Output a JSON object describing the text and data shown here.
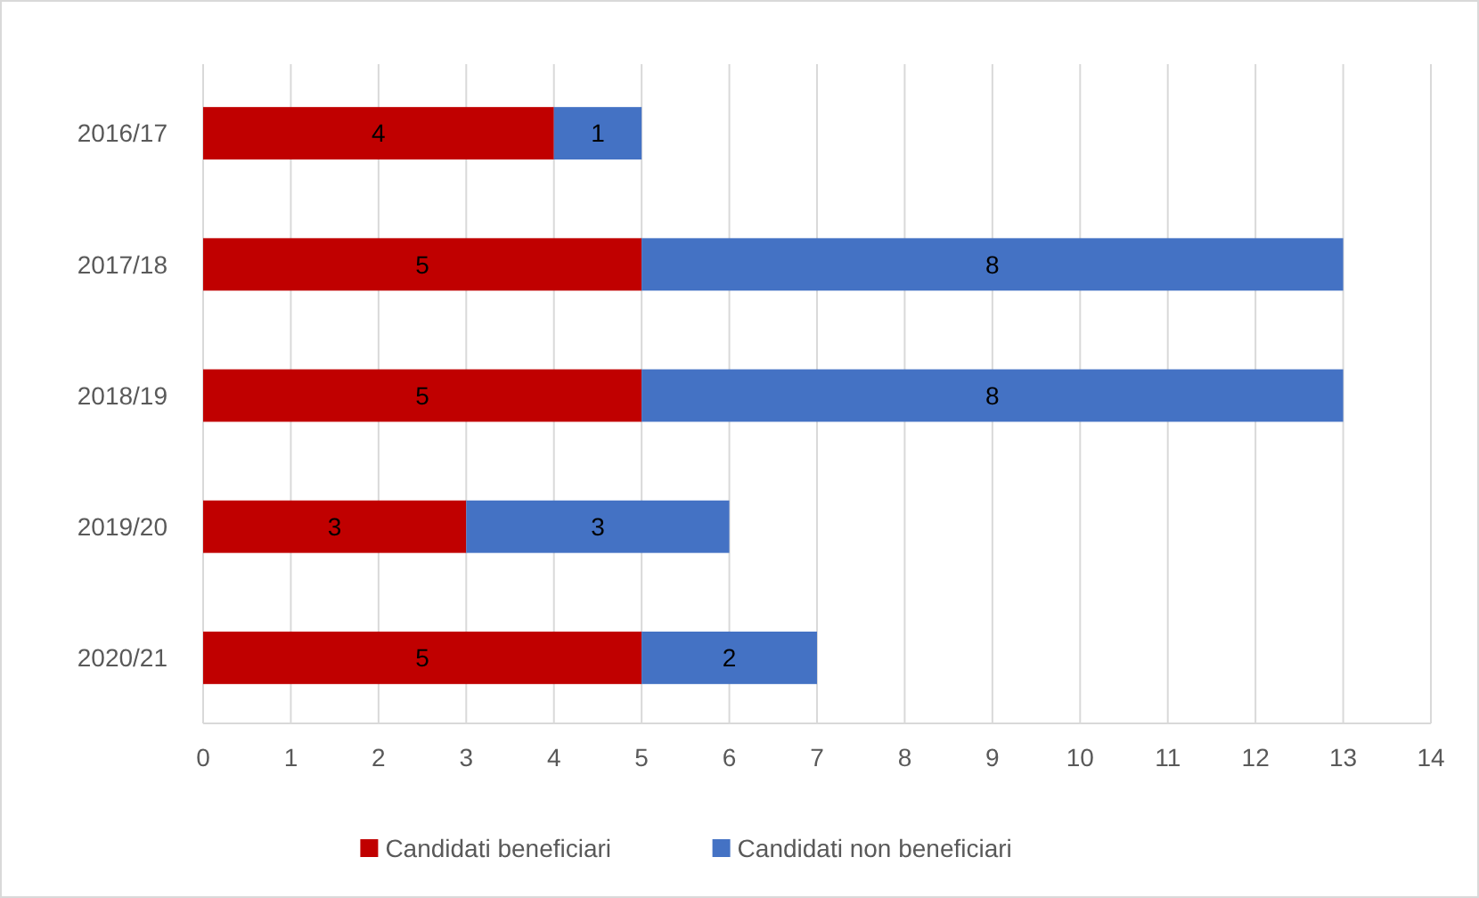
{
  "chart_data": {
    "type": "bar",
    "orientation": "horizontal",
    "stacked": true,
    "categories": [
      "2016/17",
      "2017/18",
      "2018/19",
      "2019/20",
      "2020/21"
    ],
    "series": [
      {
        "name": "Candidati beneficiari",
        "color": "#c00000",
        "values": [
          4,
          5,
          5,
          3,
          5
        ]
      },
      {
        "name": "Candidati non beneficiari",
        "color": "#4472c4",
        "values": [
          1,
          8,
          8,
          3,
          2
        ]
      }
    ],
    "xlim": [
      0,
      14
    ],
    "xticks": [
      0,
      1,
      2,
      3,
      4,
      5,
      6,
      7,
      8,
      9,
      10,
      11,
      12,
      13,
      14
    ],
    "grid": "x",
    "legend": "bottom",
    "data_labels": true
  }
}
